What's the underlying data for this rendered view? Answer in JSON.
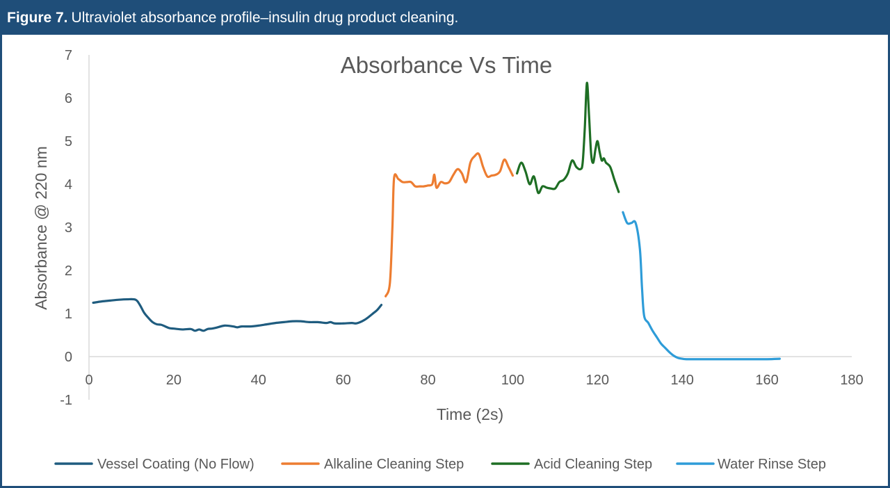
{
  "figure": {
    "label": "Figure 7.",
    "caption": "Ultraviolet absorbance profile–insulin drug product cleaning."
  },
  "colors": {
    "header_bg": "#1f4e79",
    "vessel_coating": "#1f5c7f",
    "alkaline": "#ed7d31",
    "acid": "#1e6e24",
    "water_rinse": "#2e9cd8",
    "axis_text": "#595959"
  },
  "chart_data": {
    "type": "line",
    "title": "Absorbance Vs Time",
    "xlabel": "Time (2s)",
    "ylabel": "Absorbance @ 220 nm",
    "xlim": [
      0,
      180
    ],
    "ylim": [
      -1,
      7
    ],
    "xticks": [
      "0",
      "20",
      "40",
      "60",
      "80",
      "100",
      "120",
      "140",
      "160",
      "180"
    ],
    "yticks": [
      "-1",
      "0",
      "1",
      "2",
      "3",
      "4",
      "5",
      "6",
      "7"
    ],
    "grid": false,
    "legend_position": "bottom",
    "series": [
      {
        "name": "Vessel Coating (No Flow)",
        "color": "#1f5c7f",
        "x": [
          1,
          3,
          5,
          7,
          9,
          11,
          12,
          13,
          14,
          15,
          16,
          17,
          18,
          19,
          20,
          22,
          24,
          25,
          26,
          27,
          28,
          29,
          30,
          32,
          34,
          35,
          36,
          38,
          40,
          42,
          44,
          46,
          48,
          50,
          52,
          54,
          56,
          57,
          58,
          60,
          62,
          63,
          64,
          65,
          66,
          67,
          68,
          69
        ],
        "y": [
          1.25,
          1.28,
          1.3,
          1.32,
          1.33,
          1.32,
          1.2,
          1.02,
          0.9,
          0.8,
          0.75,
          0.74,
          0.7,
          0.66,
          0.65,
          0.63,
          0.64,
          0.6,
          0.63,
          0.6,
          0.64,
          0.65,
          0.67,
          0.72,
          0.7,
          0.68,
          0.7,
          0.7,
          0.72,
          0.75,
          0.78,
          0.8,
          0.82,
          0.82,
          0.8,
          0.8,
          0.78,
          0.8,
          0.77,
          0.77,
          0.78,
          0.77,
          0.8,
          0.85,
          0.92,
          1.0,
          1.08,
          1.2
        ]
      },
      {
        "name": "Alkaline Cleaning Step",
        "color": "#ed7d31",
        "x": [
          70,
          71,
          71.6,
          72,
          73,
          74,
          75,
          76,
          77,
          78,
          79,
          80,
          81,
          81.5,
          82,
          83,
          84,
          85,
          86,
          87,
          88,
          89,
          90,
          91,
          92,
          93,
          94,
          95,
          96,
          97,
          98,
          99,
          100
        ],
        "y": [
          1.4,
          1.7,
          3.0,
          4.15,
          4.12,
          4.05,
          4.05,
          4.05,
          3.95,
          3.95,
          3.95,
          3.97,
          4.0,
          4.22,
          3.92,
          4.05,
          4.02,
          4.05,
          4.22,
          4.35,
          4.25,
          4.05,
          4.5,
          4.65,
          4.7,
          4.4,
          4.18,
          4.2,
          4.22,
          4.3,
          4.57,
          4.4,
          4.2
        ]
      },
      {
        "name": "Acid Cleaning Step",
        "color": "#1e6e24",
        "x": [
          101,
          102,
          103,
          104,
          105,
          106,
          107,
          108,
          109,
          110,
          111,
          112,
          113,
          114,
          115,
          116,
          116.5,
          117,
          117.5,
          118,
          118.5,
          119,
          119.5,
          120,
          120.5,
          121,
          121.5,
          122,
          123,
          124,
          125
        ],
        "y": [
          4.25,
          4.5,
          4.3,
          4.0,
          4.18,
          3.8,
          3.95,
          3.92,
          3.9,
          3.9,
          4.05,
          4.1,
          4.25,
          4.55,
          4.4,
          4.35,
          4.5,
          5.3,
          6.35,
          5.6,
          4.7,
          4.5,
          4.8,
          5.0,
          4.75,
          4.55,
          4.6,
          4.5,
          4.4,
          4.1,
          3.82
        ]
      },
      {
        "name": "Water Rinse Step",
        "color": "#2e9cd8",
        "x": [
          126,
          127,
          128,
          129,
          130,
          130.5,
          131,
          132,
          133,
          134,
          135,
          136,
          137,
          138,
          139,
          140,
          141,
          145,
          150,
          155,
          160,
          163
        ],
        "y": [
          3.35,
          3.1,
          3.1,
          3.1,
          2.5,
          1.6,
          0.95,
          0.78,
          0.6,
          0.45,
          0.3,
          0.2,
          0.1,
          0.02,
          -0.03,
          -0.05,
          -0.06,
          -0.06,
          -0.06,
          -0.06,
          -0.06,
          -0.05
        ]
      }
    ]
  }
}
